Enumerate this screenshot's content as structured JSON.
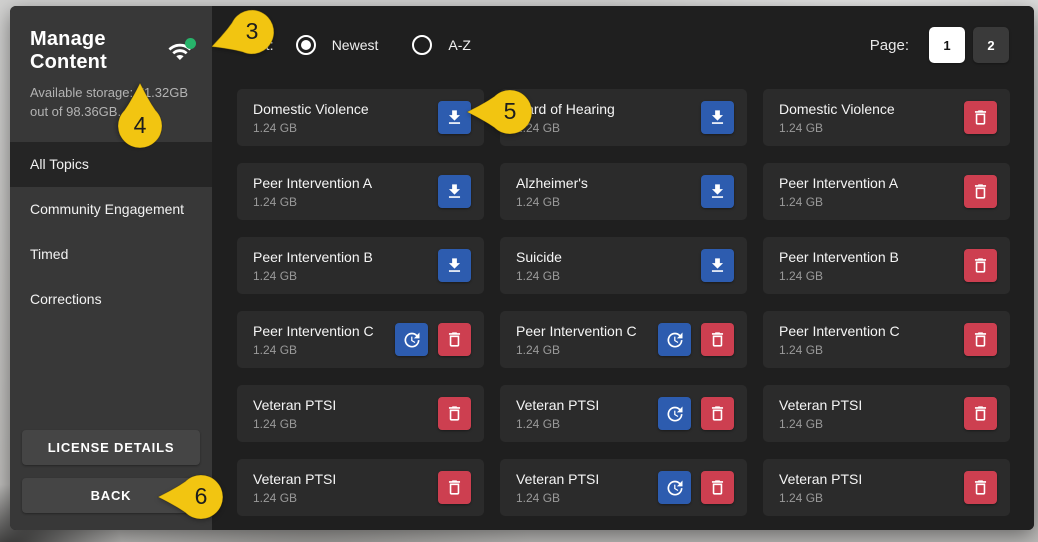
{
  "header": {
    "title": "Manage Content",
    "storage_line1": "Available storage: 71.32GB",
    "storage_line2": "out of 98.36GB."
  },
  "sidebar": {
    "items": [
      {
        "label": "All Topics",
        "selected": true
      },
      {
        "label": "Community Engagement",
        "selected": false
      },
      {
        "label": "Timed",
        "selected": false
      },
      {
        "label": "Corrections",
        "selected": false
      }
    ],
    "license_button_label": "LICENSE DETAILS",
    "back_button_label": "BACK"
  },
  "toolbar": {
    "sort_label": "Sort:",
    "sort_options": [
      {
        "label": "Newest",
        "selected": true
      },
      {
        "label": "A-Z",
        "selected": false
      }
    ],
    "page_label": "Page:",
    "pages": [
      {
        "label": "1",
        "selected": true
      },
      {
        "label": "2",
        "selected": false
      }
    ]
  },
  "content_cards": [
    {
      "title": "Domestic Violence",
      "size": "1.24 GB",
      "actions": [
        "download"
      ]
    },
    {
      "title": "Hard of Hearing",
      "size": "1.24 GB",
      "actions": [
        "download"
      ]
    },
    {
      "title": "Domestic Violence",
      "size": "1.24 GB",
      "actions": [
        "delete"
      ]
    },
    {
      "title": "Peer Intervention A",
      "size": "1.24 GB",
      "actions": [
        "download"
      ]
    },
    {
      "title": "Alzheimer's",
      "size": "1.24 GB",
      "actions": [
        "download"
      ]
    },
    {
      "title": "Peer Intervention A",
      "size": "1.24 GB",
      "actions": [
        "delete"
      ]
    },
    {
      "title": "Peer Intervention B",
      "size": "1.24 GB",
      "actions": [
        "download"
      ]
    },
    {
      "title": "Suicide",
      "size": "1.24 GB",
      "actions": [
        "download"
      ]
    },
    {
      "title": "Peer Intervention B",
      "size": "1.24 GB",
      "actions": [
        "delete"
      ]
    },
    {
      "title": "Peer Intervention C",
      "size": "1.24 GB",
      "actions": [
        "update",
        "delete"
      ]
    },
    {
      "title": "Peer Intervention C",
      "size": "1.24 GB",
      "actions": [
        "update",
        "delete"
      ]
    },
    {
      "title": "Peer Intervention C",
      "size": "1.24 GB",
      "actions": [
        "delete"
      ]
    },
    {
      "title": "Veteran PTSI",
      "size": "1.24 GB",
      "actions": [
        "delete"
      ]
    },
    {
      "title": "Veteran PTSI",
      "size": "1.24 GB",
      "actions": [
        "update",
        "delete"
      ]
    },
    {
      "title": "Veteran PTSI",
      "size": "1.24 GB",
      "actions": [
        "delete"
      ]
    },
    {
      "title": "Veteran PTSI",
      "size": "1.24 GB",
      "actions": [
        "delete"
      ]
    },
    {
      "title": "Veteran PTSI",
      "size": "1.24 GB",
      "actions": [
        "update",
        "delete"
      ]
    },
    {
      "title": "Veteran PTSI",
      "size": "1.24 GB",
      "actions": [
        "delete"
      ]
    }
  ],
  "annotations": [
    {
      "number": "3",
      "target": "wifi-status-icon"
    },
    {
      "number": "4",
      "target": "available-storage-text"
    },
    {
      "number": "5",
      "target": "download-button"
    },
    {
      "number": "6",
      "target": "back-button"
    }
  ],
  "colors": {
    "download_button": "#2d5caf",
    "update_button": "#2d5caf",
    "delete_button": "#cd3f50",
    "annotation": "#f2c511",
    "status_dot": "#27b36a",
    "page_selected_bg": "#ffffff"
  }
}
